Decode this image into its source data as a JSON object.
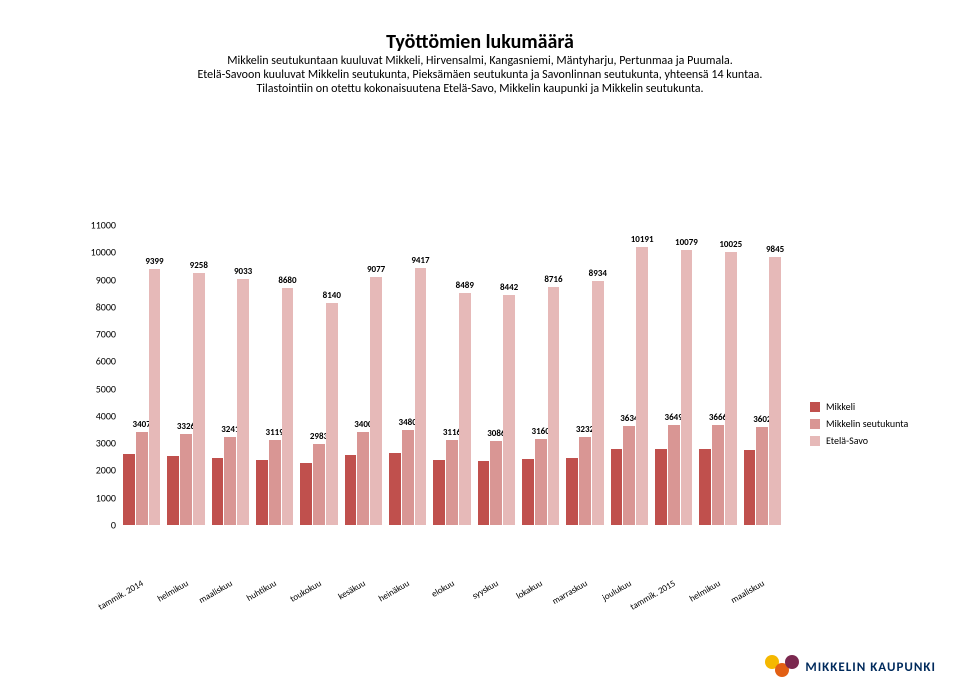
{
  "title": {
    "text": "Työttömien lukumäärä",
    "fontsize": 20,
    "weight": "bold"
  },
  "subtitle": {
    "line1": "Mikkelin seutukuntaan kuuluvat Mikkeli, Hirvensalmi, Kangasniemi, Mäntyharju, Pertunmaa ja Puumala.",
    "line2": "Etelä-Savoon kuuluvat  Mikkelin seutukunta, Pieksämäen seutukunta ja Savonlinnan seutukunta, yhteensä 14 kuntaa.",
    "line3": "Tilastointiin on otettu kokonaisuutena Etelä-Savo, Mikkelin kaupunki ja Mikkelin seutukunta.",
    "fontsize": 12
  },
  "chart": {
    "type": "grouped-bar",
    "background_color": "#ffffff",
    "y_axis": {
      "min": 0,
      "max": 11000,
      "tick_step": 1000,
      "fontsize": 10,
      "grid": false
    },
    "x_axis": {
      "fontsize": 9,
      "rotation_deg": -30
    },
    "bar_label_fontsize": 9,
    "series": [
      {
        "name": "Mikkeli",
        "color": "#c0504d",
        "show_labels": false
      },
      {
        "name": "Mikkelin seutukunta",
        "color": "#d99694",
        "show_labels": true
      },
      {
        "name": "Etelä-Savo",
        "color": "#e6b9b8",
        "show_labels": true
      }
    ],
    "categories": [
      "tammik. 2014",
      "helmikuu",
      "maaliskuu",
      "huhtikuu",
      "toukokuu",
      "kesäkuu",
      "heinäkuu",
      "elokuu",
      "syyskuu",
      "lokakuu",
      "marraskuu",
      "joulukuu",
      "tammik. 2015",
      "helmikuu",
      "maaliskuu"
    ],
    "data": {
      "Mikkeli": [
        2600,
        2520,
        2470,
        2380,
        2270,
        2580,
        2640,
        2370,
        2350,
        2410,
        2460,
        2770,
        2780,
        2790,
        2740
      ],
      "Mikkelin seutukunta": [
        3407,
        3326,
        3241,
        3119,
        2983,
        3400,
        3480,
        3116,
        3086,
        3160,
        3232,
        3634,
        3649,
        3666,
        3602
      ],
      "Etelä-Savo": [
        9399,
        9258,
        9033,
        8680,
        8140,
        9077,
        9417,
        8489,
        8442,
        8716,
        8934,
        10191,
        10079,
        10025,
        9845
      ]
    }
  },
  "legend": {
    "fontsize": 10
  },
  "logo": {
    "text": "MIKKELIN KAUPUNKI",
    "fontsize": 13,
    "colors": {
      "yellow": "#f5b800",
      "orange": "#e25f14",
      "plum": "#7b284f",
      "text": "#002a5c"
    }
  }
}
